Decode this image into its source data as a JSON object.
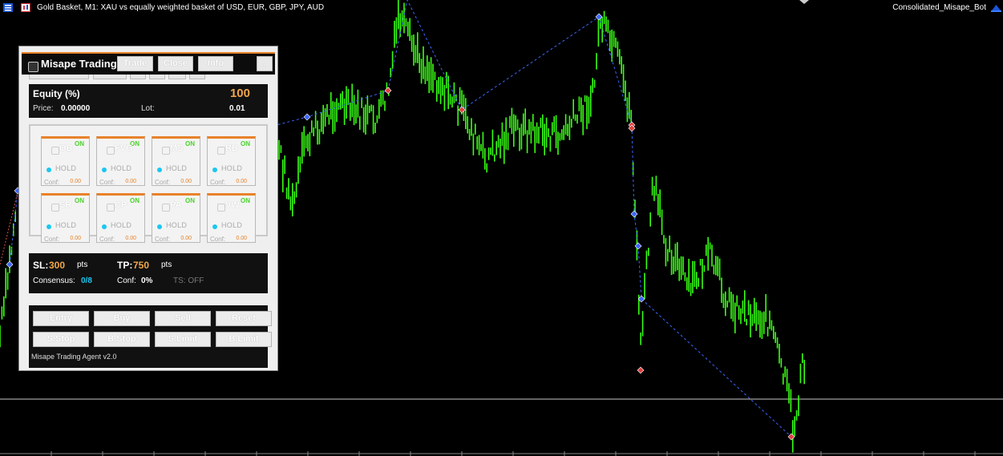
{
  "window": {
    "title": "Gold Basket, M1:  XAU vs equally weighted basket of USD, EUR, GBP, JPY, AUD",
    "bot_name": "Consolidated_Misape_Bot"
  },
  "colors": {
    "background": "#000000",
    "candles": "#39ff14",
    "accent": "#e8822a",
    "zigzag": "#3b67ff",
    "on_green": "#4bd32b",
    "status_cyan": "#19c7f0"
  },
  "panel": {
    "title": "Misape Trading",
    "header_buttons": [
      {
        "label": "Trade"
      },
      {
        "label": "Close"
      },
      {
        "label": "Info"
      },
      {
        "label": "..."
      }
    ],
    "equity": {
      "label": "Equity (%)",
      "value": "100",
      "price_label": "Price:",
      "price_value": "0.00000",
      "lot_label": "Lot:",
      "lot_value": "0.01"
    },
    "strategies": [
      {
        "name": "OB",
        "state": "ON",
        "signal": "HOLD",
        "conf_label": "Conf:",
        "conf": "0.00"
      },
      {
        "name": "FVG",
        "state": "ON",
        "signal": "HOLD",
        "conf_label": "Conf:",
        "conf": "0.00"
      },
      {
        "name": "MS",
        "state": "ON",
        "signal": "HOLD",
        "conf_label": "Conf:",
        "conf": "0.00"
      },
      {
        "name": "RB",
        "state": "ON",
        "signal": "HOLD",
        "conf_label": "Conf:",
        "conf": "0.00"
      },
      {
        "name": "SR",
        "state": "ON",
        "signal": "HOLD",
        "conf_label": "Conf:",
        "conf": "0.00"
      },
      {
        "name": "CP",
        "state": "ON",
        "signal": "HOLD",
        "conf_label": "Conf:",
        "conf": "0.00"
      },
      {
        "name": "PA",
        "state": "ON",
        "signal": "HOLD",
        "conf_label": "Conf:",
        "conf": "0.00"
      },
      {
        "name": "VW",
        "state": "ON",
        "signal": "HOLD",
        "conf_label": "Conf:",
        "conf": "0.00"
      }
    ],
    "risk": {
      "sl_label": "SL:",
      "sl_value": "300",
      "sl_unit": "pts",
      "tp_label": "TP:",
      "tp_value": "750",
      "tp_unit": "pts",
      "consensus_label": "Consensus:",
      "consensus_value": "0/8",
      "conf_label": "Conf:",
      "conf_value": "0%",
      "ts_label": "TS: OFF"
    },
    "actions": [
      {
        "label": "Entry"
      },
      {
        "label": "Buy"
      },
      {
        "label": "Sell"
      },
      {
        "label": "Reset"
      },
      {
        "label": "S.Stop"
      },
      {
        "label": "B.Stop"
      },
      {
        "label": "S.Limit"
      },
      {
        "label": "B.Limit"
      }
    ],
    "footer": "Misape Trading Agent v2.0"
  }
}
